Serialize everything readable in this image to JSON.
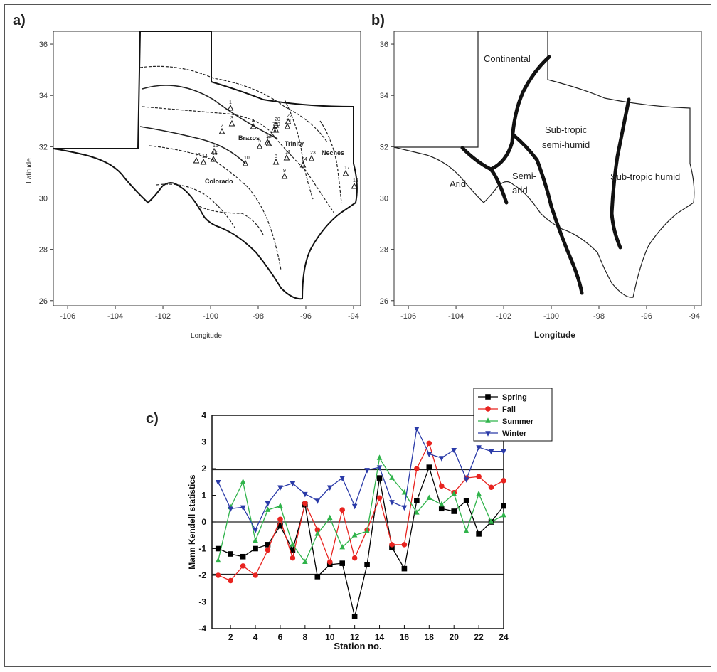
{
  "panels": {
    "a": {
      "label": "a)",
      "xlabel": "Longitude",
      "ylabel": "Latitude",
      "xticks": [
        "-106",
        "-104",
        "-102",
        "-100",
        "-98",
        "-96",
        "-94"
      ],
      "yticks": [
        "26",
        "28",
        "30",
        "32",
        "34",
        "36"
      ],
      "basins": [
        "Brazos",
        "Trinity",
        "Neches",
        "Colorado"
      ],
      "stations": [
        "1",
        "2",
        "3",
        "4",
        "5",
        "6",
        "7",
        "8",
        "9",
        "10",
        "11",
        "12",
        "13",
        "14",
        "15",
        "16",
        "17",
        "18",
        "19",
        "20",
        "21",
        "22",
        "23",
        "24"
      ]
    },
    "b": {
      "label": "b)",
      "xlabel": "Longitude",
      "xticks": [
        "-106",
        "-104",
        "-102",
        "-100",
        "-98",
        "-96",
        "-94"
      ],
      "yticks": [
        "26",
        "28",
        "30",
        "32",
        "34",
        "36"
      ],
      "regions": {
        "continental": "Continental",
        "arid": "Arid",
        "semi_arid_1": "Semi-",
        "semi_arid_2": "arid",
        "subtropic_semi_humid_1": "Sub-tropic",
        "subtropic_semi_humid_2": "semi-humid",
        "subtropic_humid": "Sub-tropic humid"
      }
    },
    "c": {
      "label": "c)"
    }
  },
  "chart_data": {
    "type": "line",
    "xlabel": "Station no.",
    "ylabel": "Mann Kendell statistics",
    "xlim": [
      0.5,
      24
    ],
    "ylim": [
      -4,
      4
    ],
    "xticks": [
      2,
      4,
      6,
      8,
      10,
      12,
      14,
      16,
      18,
      20,
      22,
      24
    ],
    "yticks": [
      -4,
      -3,
      -2,
      -1,
      0,
      1,
      2,
      3,
      4
    ],
    "reference_lines": [
      1.96,
      0,
      -1.96
    ],
    "legend_position": "top-right",
    "x": [
      1,
      2,
      3,
      4,
      5,
      6,
      7,
      8,
      9,
      10,
      11,
      12,
      13,
      14,
      15,
      16,
      17,
      18,
      19,
      20,
      21,
      22,
      23,
      24
    ],
    "series": [
      {
        "name": "Spring",
        "color": "#000000",
        "marker": "square",
        "values": [
          -1.0,
          -1.2,
          -1.3,
          -1.0,
          -0.85,
          -0.15,
          -1.05,
          0.65,
          -2.05,
          -1.6,
          -1.55,
          -3.55,
          -1.6,
          1.65,
          -0.95,
          -1.75,
          0.8,
          2.05,
          0.5,
          0.4,
          0.8,
          -0.45,
          0.0,
          0.6
        ]
      },
      {
        "name": "Fall",
        "color": "#e8231f",
        "marker": "circle",
        "values": [
          -2.0,
          -2.2,
          -1.65,
          -2.0,
          -1.05,
          0.1,
          -1.35,
          0.7,
          -0.3,
          -1.5,
          0.45,
          -1.35,
          -0.3,
          0.9,
          -0.85,
          -0.85,
          2.0,
          2.95,
          1.35,
          1.1,
          1.65,
          1.7,
          1.3,
          1.55
        ]
      },
      {
        "name": "Summer",
        "color": "#2fb34a",
        "marker": "triangle-up",
        "values": [
          -1.45,
          0.55,
          1.5,
          -0.7,
          0.45,
          0.6,
          -0.85,
          -1.5,
          -0.45,
          0.15,
          -0.95,
          -0.5,
          -0.35,
          2.4,
          1.65,
          1.1,
          0.35,
          0.9,
          0.65,
          1.05,
          -0.35,
          1.05,
          0.0,
          0.25
        ]
      },
      {
        "name": "Winter",
        "color": "#2a3aa8",
        "marker": "triangle-down",
        "values": [
          1.5,
          0.5,
          0.55,
          -0.3,
          0.7,
          1.3,
          1.45,
          1.05,
          0.8,
          1.3,
          1.65,
          0.6,
          1.95,
          2.05,
          0.75,
          0.55,
          3.5,
          2.55,
          2.4,
          2.7,
          1.6,
          2.8,
          2.65,
          2.65
        ]
      }
    ]
  }
}
